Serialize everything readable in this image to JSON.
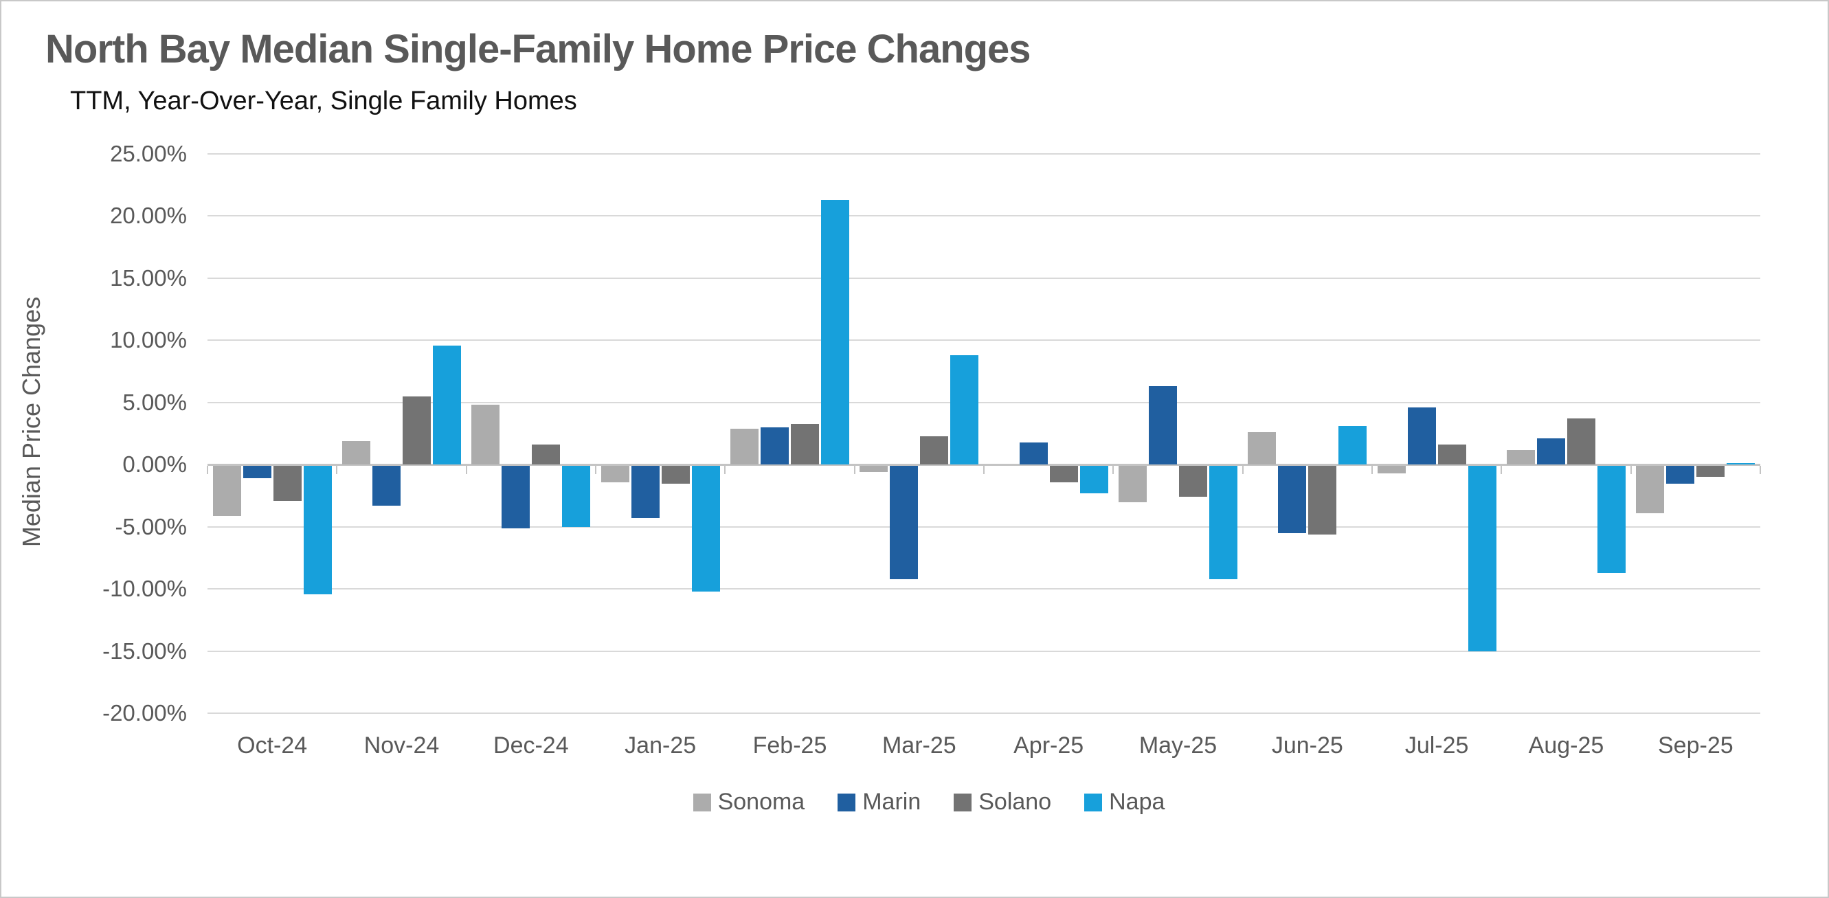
{
  "page": {
    "background": "#ffffff",
    "border_color": "#c8c8c8"
  },
  "header": {
    "title": "North Bay Median Single-Family Home Price Changes",
    "subtitle": "TTM, Year-Over-Year, Single Family Homes"
  },
  "chart_data": {
    "type": "bar",
    "title": "North Bay Median Single-Family Home Price Changes",
    "subtitle": "TTM, Year-Over-Year, Single Family Homes",
    "xlabel": "",
    "ylabel": "Median Price Changes",
    "ylim": [
      -20,
      25
    ],
    "ytick_step": 5,
    "yticks": [
      "25.00%",
      "20.00%",
      "15.00%",
      "10.00%",
      "5.00%",
      "0.00%",
      "-5.00%",
      "-10.00%",
      "-15.00%",
      "-20.00%"
    ],
    "grid": "horizontal",
    "legend_position": "bottom",
    "categories": [
      "Oct-24",
      "Nov-24",
      "Dec-24",
      "Jan-25",
      "Feb-25",
      "Mar-25",
      "Apr-25",
      "May-25",
      "Jun-25",
      "Jul-25",
      "Aug-25",
      "Sep-25"
    ],
    "series": [
      {
        "name": "Sonoma",
        "color": "#acacac",
        "values": [
          -4.0,
          1.9,
          4.8,
          -1.3,
          2.9,
          -0.5,
          0.0,
          -2.9,
          2.6,
          -0.6,
          1.2,
          -3.8
        ]
      },
      {
        "name": "Marin",
        "color": "#205fa0",
        "values": [
          -1.0,
          -3.2,
          -5.0,
          -4.2,
          3.0,
          -9.1,
          1.8,
          6.3,
          -5.4,
          4.6,
          2.1,
          -1.4
        ]
      },
      {
        "name": "Solano",
        "color": "#737373",
        "values": [
          -2.8,
          5.5,
          1.6,
          -1.4,
          3.3,
          2.3,
          -1.3,
          -2.5,
          -5.5,
          1.6,
          3.7,
          -0.9
        ]
      },
      {
        "name": "Napa",
        "color": "#17a0db",
        "values": [
          -10.3,
          9.6,
          -4.9,
          -10.1,
          21.3,
          8.8,
          -2.2,
          -9.1,
          3.1,
          -14.9,
          -8.6,
          0.1
        ]
      }
    ],
    "colors": {
      "gridline": "#d9d9d9",
      "axis_line": "#c4c4c4",
      "title_text": "#595959",
      "subtitle_text": "#111111",
      "axis_text": "#595959"
    }
  }
}
